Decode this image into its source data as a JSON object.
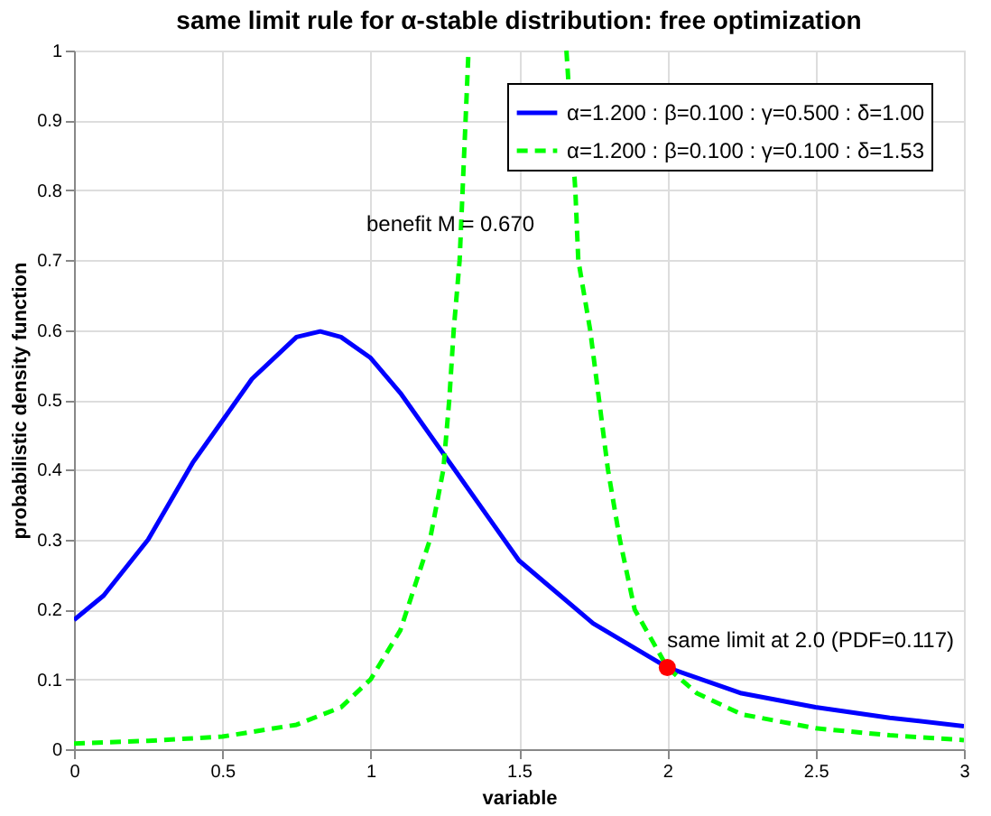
{
  "chart_data": {
    "type": "line",
    "title": "same limit rule for α-stable distribution: free optimization",
    "xlabel": "variable",
    "ylabel": "probabilistic density function",
    "xlim": [
      0,
      3
    ],
    "ylim": [
      0,
      1
    ],
    "xticks": [
      0,
      0.5,
      1,
      1.5,
      2,
      2.5,
      3
    ],
    "yticks": [
      0,
      0.1,
      0.2,
      0.3,
      0.4,
      0.5,
      0.6,
      0.7,
      0.8,
      0.9,
      1
    ],
    "grid": true,
    "legend": "top right",
    "annotations": [
      "benefit M = 0.670",
      {
        "text": "same limit at 2.0 (PDF=0.117)",
        "x": 2,
        "y": 0.117
      }
    ],
    "series": [
      {
        "name": "α=1.200 : β=0.100 : γ=0.500 : δ=1.00",
        "color": "#0000ff",
        "line_style": "solid",
        "x": [
          0,
          0.1,
          0.25,
          0.4,
          0.5,
          0.6,
          0.75,
          0.83,
          0.9,
          1.0,
          1.1,
          1.25,
          1.4,
          1.5,
          1.75,
          2.0,
          2.25,
          2.5,
          2.75,
          3.0
        ],
        "values": [
          0.185,
          0.22,
          0.3,
          0.41,
          0.47,
          0.53,
          0.59,
          0.598,
          0.59,
          0.56,
          0.51,
          0.42,
          0.33,
          0.27,
          0.18,
          0.117,
          0.08,
          0.06,
          0.045,
          0.033
        ]
      },
      {
        "name": "α=1.200 : β=0.100 : γ=0.100 : δ=1.53",
        "color": "#00ff00",
        "line_style": "dashed",
        "x": [
          0,
          0.25,
          0.5,
          0.75,
          0.9,
          1.0,
          1.1,
          1.2,
          1.245,
          1.265,
          1.28,
          1.3,
          1.31,
          1.33,
          1.5,
          1.66,
          1.69,
          1.7,
          1.74,
          1.77,
          1.8,
          1.84,
          1.89,
          2.0,
          2.1,
          2.25,
          2.5,
          2.75,
          3.0
        ],
        "values": [
          0.008,
          0.012,
          0.018,
          0.035,
          0.06,
          0.1,
          0.17,
          0.3,
          0.4,
          0.5,
          0.6,
          0.7,
          0.8,
          1.0,
          null,
          1.0,
          0.8,
          0.7,
          0.6,
          0.5,
          0.4,
          0.3,
          0.2,
          0.117,
          0.08,
          0.05,
          0.03,
          0.02,
          0.013
        ]
      },
      {
        "type": "scatter",
        "color": "#ff0000",
        "marker": "circle",
        "x": [
          2
        ],
        "values": [
          0.117
        ]
      }
    ]
  }
}
